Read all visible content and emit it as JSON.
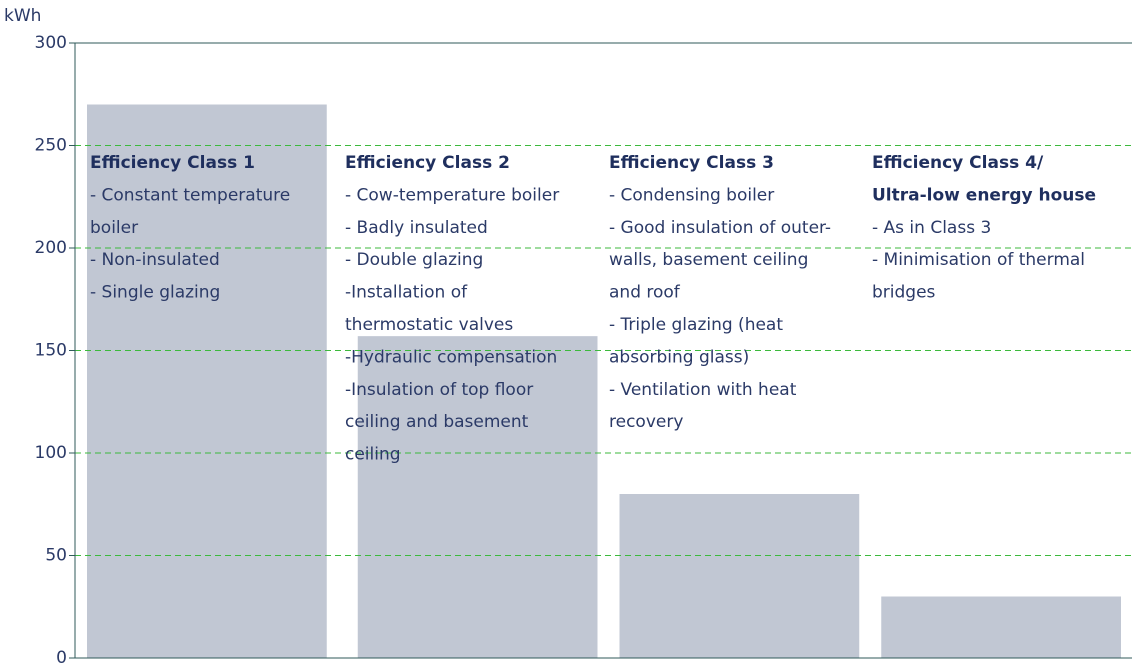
{
  "chart_data": {
    "type": "bar",
    "y_label": "kWh",
    "categories": [
      null,
      null,
      null,
      null
    ],
    "values": [
      270,
      157,
      80,
      30
    ],
    "color": "#c1c7d3",
    "grid_color": "#3cba3c",
    "ylim": [
      0,
      300
    ],
    "yticks": [
      0,
      50,
      100,
      150,
      200,
      250,
      300
    ],
    "grid": true,
    "annotations": [
      {
        "title": [
          "Efficiency Class 1"
        ],
        "lines": [
          "- Constant temperature",
          "boiler",
          "- Non-insulated",
          "- Single glazing"
        ]
      },
      {
        "title": [
          "Efficiency Class 2"
        ],
        "lines": [
          "- Cow-temperature boiler",
          "- Badly insulated",
          "- Double glazing",
          "-Installation of",
          "thermostatic valves",
          "-Hydraulic compensation",
          "-Insulation of top floor",
          "ceiling and basement",
          "ceiling"
        ]
      },
      {
        "title": [
          "Efficiency Class 3"
        ],
        "lines": [
          "- Condensing boiler",
          "- Good insulation of outer-",
          "walls, basement ceiling",
          "and roof",
          "- Triple glazing (heat",
          "absorbing glass)",
          "-  Ventilation with heat",
          "recovery"
        ]
      },
      {
        "title": [
          "Efficiency Class 4/",
          "Ultra-low energy house"
        ],
        "lines": [
          "- As in Class 3",
          "- Minimisation of thermal",
          "bridges"
        ]
      }
    ]
  }
}
